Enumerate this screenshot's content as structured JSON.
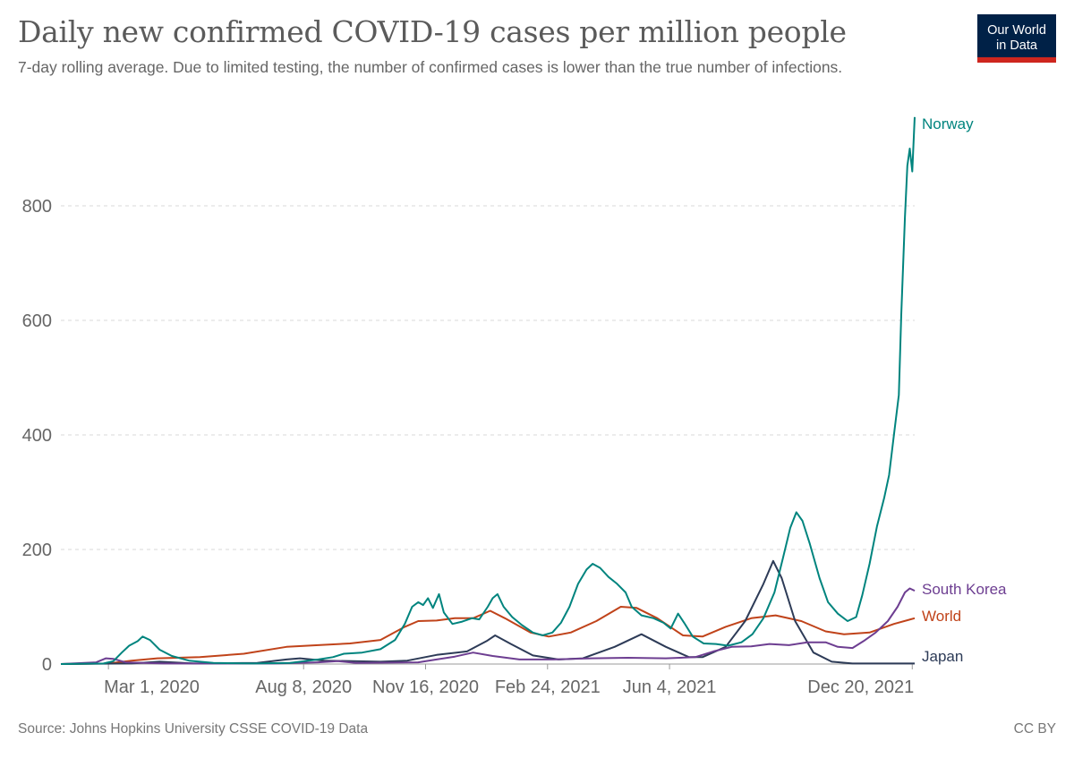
{
  "header": {
    "title": "Daily new confirmed COVID-19 cases per million people",
    "subtitle": "7-day rolling average. Due to limited testing, the number of confirmed cases is lower than the true number of infections.",
    "logo_line1": "Our World",
    "logo_line2": "in Data"
  },
  "footer": {
    "source": "Source: Johns Hopkins University CSSE COVID-19 Data",
    "license": "CC BY"
  },
  "colors": {
    "Norway": "#00847e",
    "South Korea": "#6d3e91",
    "World": "#c15065",
    "Japan": "#2d3b57",
    "logo_bg": "#002147",
    "logo_accent": "#ce261e"
  },
  "chart_data": {
    "type": "line",
    "title": "Daily new confirmed COVID-19 cases per million people",
    "xlabel": "",
    "ylabel": "",
    "x_range": [
      "2020-01-22",
      "2021-12-22"
    ],
    "ylim": [
      0,
      950
    ],
    "y_ticks": [
      0,
      200,
      400,
      600,
      800
    ],
    "x_ticks": [
      "Mar 1, 2020",
      "Aug 8, 2020",
      "Nov 16, 2020",
      "Feb 24, 2021",
      "Jun 4, 2021",
      "Dec 20, 2021"
    ],
    "x_tick_dates": [
      "2020-03-01",
      "2020-08-08",
      "2020-11-16",
      "2021-02-24",
      "2021-06-04",
      "2021-12-20"
    ],
    "grid": "horizontal dashed",
    "legend": "line-end labels",
    "series": [
      {
        "name": "Norway",
        "points": [
          [
            "2020-01-22",
            0
          ],
          [
            "2020-02-26",
            1
          ],
          [
            "2020-03-05",
            5
          ],
          [
            "2020-03-12",
            20
          ],
          [
            "2020-03-18",
            32
          ],
          [
            "2020-03-25",
            40
          ],
          [
            "2020-03-29",
            48
          ],
          [
            "2020-04-04",
            42
          ],
          [
            "2020-04-12",
            25
          ],
          [
            "2020-04-22",
            14
          ],
          [
            "2020-05-06",
            6
          ],
          [
            "2020-05-26",
            2
          ],
          [
            "2020-06-28",
            1
          ],
          [
            "2020-07-28",
            2
          ],
          [
            "2020-08-20",
            8
          ],
          [
            "2020-09-01",
            12
          ],
          [
            "2020-09-10",
            18
          ],
          [
            "2020-09-25",
            20
          ],
          [
            "2020-10-10",
            26
          ],
          [
            "2020-10-22",
            42
          ],
          [
            "2020-10-30",
            70
          ],
          [
            "2020-11-05",
            100
          ],
          [
            "2020-11-10",
            108
          ],
          [
            "2020-11-14",
            103
          ],
          [
            "2020-11-18",
            115
          ],
          [
            "2020-11-22",
            98
          ],
          [
            "2020-11-27",
            122
          ],
          [
            "2020-12-01",
            90
          ],
          [
            "2020-12-08",
            70
          ],
          [
            "2020-12-16",
            74
          ],
          [
            "2020-12-24",
            80
          ],
          [
            "2020-12-30",
            78
          ],
          [
            "2021-01-06",
            100
          ],
          [
            "2021-01-10",
            115
          ],
          [
            "2021-01-14",
            122
          ],
          [
            "2021-01-19",
            100
          ],
          [
            "2021-01-26",
            82
          ],
          [
            "2021-02-03",
            68
          ],
          [
            "2021-02-12",
            55
          ],
          [
            "2021-02-20",
            50
          ],
          [
            "2021-02-28",
            55
          ],
          [
            "2021-03-07",
            72
          ],
          [
            "2021-03-14",
            100
          ],
          [
            "2021-03-21",
            140
          ],
          [
            "2021-03-28",
            165
          ],
          [
            "2021-04-02",
            175
          ],
          [
            "2021-04-08",
            168
          ],
          [
            "2021-04-15",
            152
          ],
          [
            "2021-04-22",
            140
          ],
          [
            "2021-04-29",
            125
          ],
          [
            "2021-05-04",
            100
          ],
          [
            "2021-05-12",
            85
          ],
          [
            "2021-05-22",
            80
          ],
          [
            "2021-05-30",
            72
          ],
          [
            "2021-06-05",
            62
          ],
          [
            "2021-06-11",
            88
          ],
          [
            "2021-06-16",
            72
          ],
          [
            "2021-06-23",
            48
          ],
          [
            "2021-07-02",
            36
          ],
          [
            "2021-07-12",
            35
          ],
          [
            "2021-07-22",
            32
          ],
          [
            "2021-08-02",
            38
          ],
          [
            "2021-08-11",
            52
          ],
          [
            "2021-08-20",
            80
          ],
          [
            "2021-08-29",
            125
          ],
          [
            "2021-09-05",
            185
          ],
          [
            "2021-09-11",
            238
          ],
          [
            "2021-09-16",
            265
          ],
          [
            "2021-09-21",
            250
          ],
          [
            "2021-09-27",
            210
          ],
          [
            "2021-10-05",
            150
          ],
          [
            "2021-10-12",
            108
          ],
          [
            "2021-10-20",
            88
          ],
          [
            "2021-10-28",
            75
          ],
          [
            "2021-11-04",
            82
          ],
          [
            "2021-11-09",
            120
          ],
          [
            "2021-11-15",
            175
          ],
          [
            "2021-11-21",
            240
          ],
          [
            "2021-11-27",
            290
          ],
          [
            "2021-12-01",
            330
          ],
          [
            "2021-12-05",
            400
          ],
          [
            "2021-12-09",
            470
          ],
          [
            "2021-12-11",
            610
          ],
          [
            "2021-12-14",
            780
          ],
          [
            "2021-12-16",
            870
          ],
          [
            "2021-12-18",
            900
          ],
          [
            "2021-12-20",
            860
          ],
          [
            "2021-12-22",
            955
          ]
        ]
      },
      {
        "name": "South Korea",
        "points": [
          [
            "2020-01-22",
            0
          ],
          [
            "2020-02-20",
            3
          ],
          [
            "2020-02-28",
            10
          ],
          [
            "2020-03-05",
            9
          ],
          [
            "2020-03-15",
            3
          ],
          [
            "2020-04-15",
            1
          ],
          [
            "2020-07-15",
            1
          ],
          [
            "2020-08-20",
            3
          ],
          [
            "2020-09-05",
            5
          ],
          [
            "2020-09-20",
            2
          ],
          [
            "2020-11-10",
            3
          ],
          [
            "2020-11-25",
            8
          ],
          [
            "2020-12-10",
            13
          ],
          [
            "2020-12-25",
            20
          ],
          [
            "2021-01-10",
            14
          ],
          [
            "2021-02-01",
            8
          ],
          [
            "2021-03-01",
            8
          ],
          [
            "2021-04-01",
            10
          ],
          [
            "2021-05-01",
            11
          ],
          [
            "2021-06-01",
            10
          ],
          [
            "2021-06-25",
            12
          ],
          [
            "2021-07-10",
            22
          ],
          [
            "2021-07-25",
            30
          ],
          [
            "2021-08-10",
            31
          ],
          [
            "2021-08-25",
            35
          ],
          [
            "2021-09-10",
            33
          ],
          [
            "2021-09-25",
            38
          ],
          [
            "2021-10-10",
            38
          ],
          [
            "2021-10-20",
            30
          ],
          [
            "2021-11-01",
            28
          ],
          [
            "2021-11-10",
            40
          ],
          [
            "2021-11-20",
            55
          ],
          [
            "2021-11-30",
            75
          ],
          [
            "2021-12-08",
            100
          ],
          [
            "2021-12-14",
            125
          ],
          [
            "2021-12-18",
            132
          ],
          [
            "2021-12-22",
            128
          ]
        ]
      },
      {
        "name": "World",
        "points": [
          [
            "2020-01-22",
            0
          ],
          [
            "2020-03-01",
            1
          ],
          [
            "2020-03-20",
            6
          ],
          [
            "2020-04-10",
            10
          ],
          [
            "2020-05-15",
            12
          ],
          [
            "2020-06-20",
            18
          ],
          [
            "2020-07-25",
            30
          ],
          [
            "2020-08-20",
            33
          ],
          [
            "2020-09-15",
            36
          ],
          [
            "2020-10-10",
            42
          ],
          [
            "2020-10-30",
            65
          ],
          [
            "2020-11-10",
            75
          ],
          [
            "2020-11-25",
            76
          ],
          [
            "2020-12-10",
            80
          ],
          [
            "2020-12-25",
            80
          ],
          [
            "2021-01-08",
            93
          ],
          [
            "2021-01-20",
            80
          ],
          [
            "2021-02-10",
            55
          ],
          [
            "2021-02-25",
            48
          ],
          [
            "2021-03-15",
            55
          ],
          [
            "2021-04-05",
            75
          ],
          [
            "2021-04-25",
            100
          ],
          [
            "2021-05-08",
            98
          ],
          [
            "2021-05-25",
            80
          ],
          [
            "2021-06-15",
            50
          ],
          [
            "2021-07-01",
            48
          ],
          [
            "2021-07-20",
            65
          ],
          [
            "2021-08-10",
            80
          ],
          [
            "2021-08-30",
            85
          ],
          [
            "2021-09-20",
            75
          ],
          [
            "2021-10-10",
            57
          ],
          [
            "2021-10-25",
            52
          ],
          [
            "2021-11-15",
            55
          ],
          [
            "2021-12-05",
            70
          ],
          [
            "2021-12-22",
            80
          ]
        ]
      },
      {
        "name": "Japan",
        "points": [
          [
            "2020-01-22",
            0
          ],
          [
            "2020-03-20",
            1
          ],
          [
            "2020-04-12",
            4
          ],
          [
            "2020-05-10",
            1
          ],
          [
            "2020-07-01",
            2
          ],
          [
            "2020-07-25",
            8
          ],
          [
            "2020-08-05",
            10
          ],
          [
            "2020-08-25",
            6
          ],
          [
            "2020-10-10",
            4
          ],
          [
            "2020-11-01",
            6
          ],
          [
            "2020-11-25",
            16
          ],
          [
            "2020-12-20",
            22
          ],
          [
            "2021-01-05",
            40
          ],
          [
            "2021-01-12",
            50
          ],
          [
            "2021-01-25",
            35
          ],
          [
            "2021-02-12",
            15
          ],
          [
            "2021-03-05",
            8
          ],
          [
            "2021-03-25",
            10
          ],
          [
            "2021-04-20",
            30
          ],
          [
            "2021-05-12",
            52
          ],
          [
            "2021-06-01",
            30
          ],
          [
            "2021-06-20",
            12
          ],
          [
            "2021-07-01",
            12
          ],
          [
            "2021-07-20",
            30
          ],
          [
            "2021-08-05",
            75
          ],
          [
            "2021-08-20",
            140
          ],
          [
            "2021-08-28",
            180
          ],
          [
            "2021-09-04",
            150
          ],
          [
            "2021-09-15",
            75
          ],
          [
            "2021-09-30",
            20
          ],
          [
            "2021-10-15",
            4
          ],
          [
            "2021-11-01",
            1
          ],
          [
            "2021-12-22",
            1
          ]
        ]
      }
    ],
    "end_labels": [
      "Norway",
      "South Korea",
      "World",
      "Japan"
    ]
  }
}
